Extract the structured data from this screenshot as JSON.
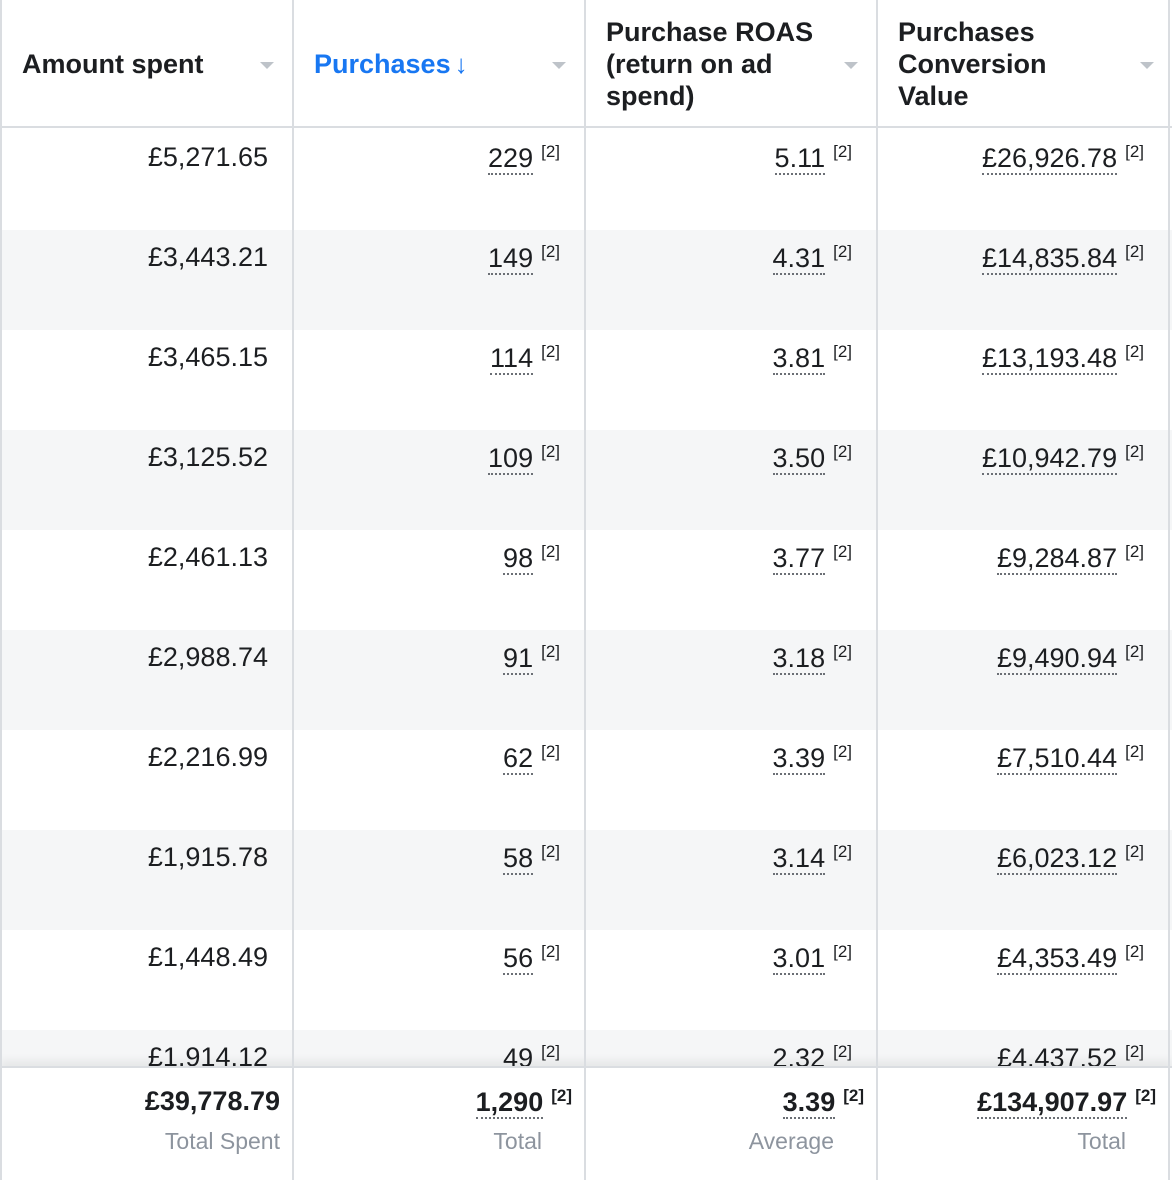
{
  "headers": [
    {
      "label": "Amount spent",
      "active": false
    },
    {
      "label": "Purchases",
      "active": true,
      "sort_icon": "arrow-down-icon"
    },
    {
      "label": "Purchase ROAS (return on ad spend)",
      "active": false
    },
    {
      "label": "Purchases Conversion Value",
      "active": false
    }
  ],
  "footnote_marker": "[2]",
  "rows": [
    {
      "spent": "£5,271.65",
      "purchases": "229",
      "roas": "5.11",
      "value": "£26,926.78"
    },
    {
      "spent": "£3,443.21",
      "purchases": "149",
      "roas": "4.31",
      "value": "£14,835.84"
    },
    {
      "spent": "£3,465.15",
      "purchases": "114",
      "roas": "3.81",
      "value": "£13,193.48"
    },
    {
      "spent": "£3,125.52",
      "purchases": "109",
      "roas": "3.50",
      "value": "£10,942.79"
    },
    {
      "spent": "£2,461.13",
      "purchases": "98",
      "roas": "3.77",
      "value": "£9,284.87"
    },
    {
      "spent": "£2,988.74",
      "purchases": "91",
      "roas": "3.18",
      "value": "£9,490.94"
    },
    {
      "spent": "£2,216.99",
      "purchases": "62",
      "roas": "3.39",
      "value": "£7,510.44"
    },
    {
      "spent": "£1,915.78",
      "purchases": "58",
      "roas": "3.14",
      "value": "£6,023.12"
    },
    {
      "spent": "£1,448.49",
      "purchases": "56",
      "roas": "3.01",
      "value": "£4,353.49"
    },
    {
      "spent": "£1,914.12",
      "purchases": "49",
      "roas": "2.32",
      "value": "£4,437.52"
    }
  ],
  "totals": {
    "spent": "£39,778.79",
    "spent_label": "Total Spent",
    "purchases": "1,290",
    "purchases_label": "Total",
    "roas": "3.39",
    "roas_label": "Average",
    "value": "£134,907.97",
    "value_label": "Total"
  },
  "colors": {
    "accent": "#1877f2",
    "border": "#dadde1",
    "alt_row": "#f5f6f7",
    "muted": "#8d949e"
  }
}
